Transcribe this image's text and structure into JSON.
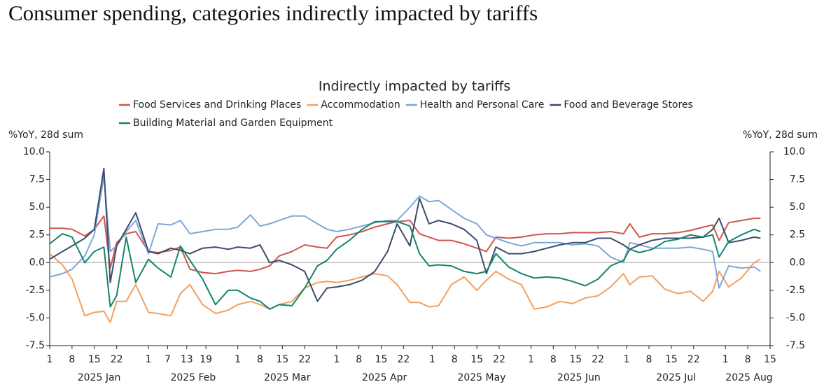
{
  "page_title": "Consumer spending, categories indirectly impacted by tariffs",
  "chart_data": {
    "type": "line",
    "title": "Indirectly impacted by tariffs",
    "ylabel": "%YoY, 28d sum",
    "y2label": "%YoY, 28d sum",
    "ylim": [
      -7.5,
      10
    ],
    "yticks": [
      {
        "value": -7.5,
        "label": "-7.5"
      },
      {
        "value": -5,
        "label": "-5.0"
      },
      -2.5,
      {
        "value": 0,
        "label": "0.0"
      },
      2.5,
      {
        "value": 5,
        "label": "5.0"
      },
      7.5,
      {
        "value": 10,
        "label": "10.0"
      }
    ],
    "y2lim": [
      -7.5,
      10
    ],
    "y2ticks": [
      {
        "value": -7.5,
        "label": "-7.5"
      },
      {
        "value": -5,
        "label": "-5.0"
      },
      -2.5,
      {
        "value": 0,
        "label": "0.0"
      },
      2.5,
      {
        "value": 5,
        "label": "5.0"
      },
      7.5,
      {
        "value": 10,
        "label": "10.0"
      }
    ],
    "zero_line": true,
    "xlim": [
      "2025-01-01",
      "2025-08-15"
    ],
    "xticks": [
      {
        "value": "2025-01-01",
        "label": "1"
      },
      {
        "value": "2025-01-08",
        "label": "8"
      },
      {
        "value": "2025-01-15",
        "label": "15"
      },
      {
        "value": "2025-01-22",
        "label": "22"
      },
      {
        "value": "2025-02-01",
        "label": "1"
      },
      {
        "value": "2025-02-07",
        "label": "7"
      },
      {
        "value": "2025-02-13",
        "label": "13"
      },
      {
        "value": "2025-02-19",
        "label": "19"
      },
      {
        "value": "2025-03-01",
        "label": "1"
      },
      {
        "value": "2025-03-08",
        "label": "8"
      },
      {
        "value": "2025-03-15",
        "label": "15"
      },
      {
        "value": "2025-03-22",
        "label": "22"
      },
      {
        "value": "2025-04-01",
        "label": "1"
      },
      {
        "value": "2025-04-08",
        "label": "8"
      },
      {
        "value": "2025-04-15",
        "label": "15"
      },
      {
        "value": "2025-04-22",
        "label": "22"
      },
      {
        "value": "2025-05-01",
        "label": "1"
      },
      {
        "value": "2025-05-08",
        "label": "8"
      },
      {
        "value": "2025-05-15",
        "label": "15"
      },
      {
        "value": "2025-05-22",
        "label": "22"
      },
      {
        "value": "2025-06-01",
        "label": "1"
      },
      {
        "value": "2025-06-08",
        "label": "8"
      },
      {
        "value": "2025-06-15",
        "label": "15"
      },
      {
        "value": "2025-06-22",
        "label": "22"
      },
      {
        "value": "2025-07-01",
        "label": "1"
      },
      {
        "value": "2025-07-08",
        "label": "8"
      },
      {
        "value": "2025-07-15",
        "label": "15"
      },
      {
        "value": "2025-07-22",
        "label": "22"
      },
      {
        "value": "2025-08-01",
        "label": "1"
      },
      {
        "value": "2025-08-08",
        "label": "8"
      },
      {
        "value": "2025-08-15",
        "label": "15"
      }
    ],
    "month_labels": [
      {
        "value": "2025-01",
        "label": "2025 Jan"
      },
      {
        "value": "2025-02",
        "label": "2025 Feb"
      },
      {
        "value": "2025-03",
        "label": "2025 Mar"
      },
      {
        "value": "2025-04",
        "label": "2025 Apr"
      },
      {
        "value": "2025-05",
        "label": "2025 May"
      },
      {
        "value": "2025-06",
        "label": "2025 Jun"
      },
      {
        "value": "2025-07",
        "label": "2025 Jul"
      },
      {
        "value": "2025-08",
        "label": "2025 Aug"
      }
    ],
    "x": [
      "2025-01-01",
      "2025-01-05",
      "2025-01-08",
      "2025-01-12",
      "2025-01-15",
      "2025-01-18",
      "2025-01-20",
      "2025-01-22",
      "2025-01-25",
      "2025-01-28",
      "2025-02-01",
      "2025-02-04",
      "2025-02-08",
      "2025-02-11",
      "2025-02-14",
      "2025-02-18",
      "2025-02-22",
      "2025-02-26",
      "2025-03-01",
      "2025-03-05",
      "2025-03-08",
      "2025-03-11",
      "2025-03-14",
      "2025-03-18",
      "2025-03-22",
      "2025-03-26",
      "2025-03-29",
      "2025-04-01",
      "2025-04-05",
      "2025-04-09",
      "2025-04-13",
      "2025-04-17",
      "2025-04-20",
      "2025-04-24",
      "2025-04-27",
      "2025-04-30",
      "2025-05-03",
      "2025-05-07",
      "2025-05-11",
      "2025-05-15",
      "2025-05-18",
      "2025-05-21",
      "2025-05-25",
      "2025-05-29",
      "2025-06-02",
      "2025-06-06",
      "2025-06-10",
      "2025-06-14",
      "2025-06-18",
      "2025-06-22",
      "2025-06-26",
      "2025-06-30",
      "2025-07-02",
      "2025-07-05",
      "2025-07-09",
      "2025-07-13",
      "2025-07-17",
      "2025-07-21",
      "2025-07-25",
      "2025-07-28",
      "2025-07-30",
      "2025-08-02",
      "2025-08-06",
      "2025-08-10",
      "2025-08-12"
    ],
    "series": [
      {
        "name": "Food Services and Drinking Places",
        "color": "#d0554f",
        "values": [
          3.1,
          3.1,
          3.0,
          2.4,
          3.0,
          4.2,
          -0.5,
          1.8,
          2.6,
          2.8,
          1.0,
          0.9,
          1.1,
          1.4,
          -0.6,
          -0.9,
          -1.0,
          -0.8,
          -0.7,
          -0.8,
          -0.6,
          -0.3,
          0.6,
          1.0,
          1.6,
          1.4,
          1.3,
          2.3,
          2.5,
          2.8,
          3.2,
          3.5,
          3.7,
          3.8,
          2.6,
          2.3,
          2.0,
          2.0,
          1.7,
          1.3,
          1.0,
          2.3,
          2.2,
          2.3,
          2.5,
          2.6,
          2.6,
          2.7,
          2.7,
          2.7,
          2.8,
          2.6,
          3.5,
          2.3,
          2.6,
          2.6,
          2.7,
          2.9,
          3.2,
          3.4,
          2.0,
          3.6,
          3.8,
          4.0,
          4.0
        ]
      },
      {
        "name": "Accommodation",
        "color": "#f0a060",
        "values": [
          0.8,
          -0.2,
          -1.5,
          -4.8,
          -4.5,
          -4.4,
          -5.4,
          -3.5,
          -3.5,
          -2.0,
          -4.5,
          -4.6,
          -4.8,
          -2.8,
          -2.0,
          -3.8,
          -4.6,
          -4.3,
          -3.8,
          -3.5,
          -3.8,
          -4.2,
          -3.8,
          -3.5,
          -2.3,
          -1.8,
          -1.7,
          -1.8,
          -1.6,
          -1.3,
          -1.0,
          -1.2,
          -2.0,
          -3.6,
          -3.6,
          -4.0,
          -3.9,
          -2.0,
          -1.3,
          -2.5,
          -1.6,
          -0.8,
          -1.5,
          -2.0,
          -4.2,
          -4.0,
          -3.5,
          -3.7,
          -3.2,
          -3.0,
          -2.2,
          -1.0,
          -2.0,
          -1.3,
          -1.2,
          -2.4,
          -2.8,
          -2.6,
          -3.5,
          -2.6,
          -0.8,
          -2.2,
          -1.4,
          0.0,
          0.3
        ]
      },
      {
        "name": "Health and Personal Care",
        "color": "#7ea7da",
        "values": [
          -1.3,
          -1.0,
          -0.6,
          0.6,
          2.5,
          7.8,
          1.0,
          1.5,
          2.8,
          3.8,
          0.8,
          3.5,
          3.4,
          3.8,
          2.6,
          2.8,
          3.0,
          3.0,
          3.2,
          4.3,
          3.3,
          3.5,
          3.8,
          4.2,
          4.2,
          3.5,
          3.0,
          2.8,
          3.0,
          3.3,
          3.6,
          3.8,
          3.8,
          5.0,
          6.0,
          5.5,
          5.6,
          4.8,
          4.0,
          3.5,
          2.5,
          2.2,
          1.8,
          1.5,
          1.8,
          1.8,
          1.8,
          1.6,
          1.7,
          1.5,
          0.5,
          0.0,
          1.8,
          1.6,
          1.3,
          1.3,
          1.3,
          1.4,
          1.2,
          1.0,
          -2.3,
          -0.3,
          -0.5,
          -0.4,
          -0.8
        ]
      },
      {
        "name": "Food and Beverage Stores",
        "color": "#3b4d6b",
        "values": [
          0.3,
          1.0,
          1.5,
          2.2,
          3.0,
          8.5,
          -1.8,
          1.5,
          3.0,
          4.5,
          1.0,
          0.8,
          1.3,
          1.1,
          0.8,
          1.3,
          1.4,
          1.2,
          1.4,
          1.3,
          1.6,
          0.0,
          0.2,
          -0.2,
          -0.8,
          -3.5,
          -2.3,
          -2.2,
          -2.0,
          -1.6,
          -0.8,
          1.0,
          3.5,
          1.5,
          5.8,
          3.5,
          3.8,
          3.5,
          3.0,
          2.0,
          -1.0,
          1.4,
          0.8,
          0.8,
          1.0,
          1.3,
          1.6,
          1.8,
          1.8,
          2.2,
          2.2,
          1.6,
          1.2,
          1.6,
          2.0,
          2.2,
          2.2,
          2.2,
          2.3,
          3.0,
          4.0,
          1.8,
          2.0,
          2.3,
          2.2
        ]
      },
      {
        "name": "Building Material and Garden Equipment",
        "color": "#12866a",
        "values": [
          1.7,
          2.6,
          2.3,
          0.0,
          1.0,
          1.4,
          -4.0,
          -3.0,
          2.3,
          -1.8,
          0.3,
          -0.5,
          -1.3,
          1.5,
          0.2,
          -1.5,
          -3.8,
          -2.5,
          -2.5,
          -3.2,
          -3.5,
          -4.2,
          -3.8,
          -3.9,
          -2.3,
          -0.3,
          0.2,
          1.2,
          2.0,
          3.0,
          3.7,
          3.7,
          3.7,
          3.3,
          0.8,
          -0.3,
          -0.2,
          -0.3,
          -0.8,
          -1.0,
          -0.8,
          0.8,
          -0.4,
          -1.0,
          -1.4,
          -1.3,
          -1.4,
          -1.7,
          -2.1,
          -1.5,
          -0.3,
          0.2,
          1.2,
          0.9,
          1.2,
          1.9,
          2.1,
          2.5,
          2.3,
          2.5,
          0.5,
          1.9,
          2.5,
          3.0,
          2.8
        ]
      }
    ]
  }
}
